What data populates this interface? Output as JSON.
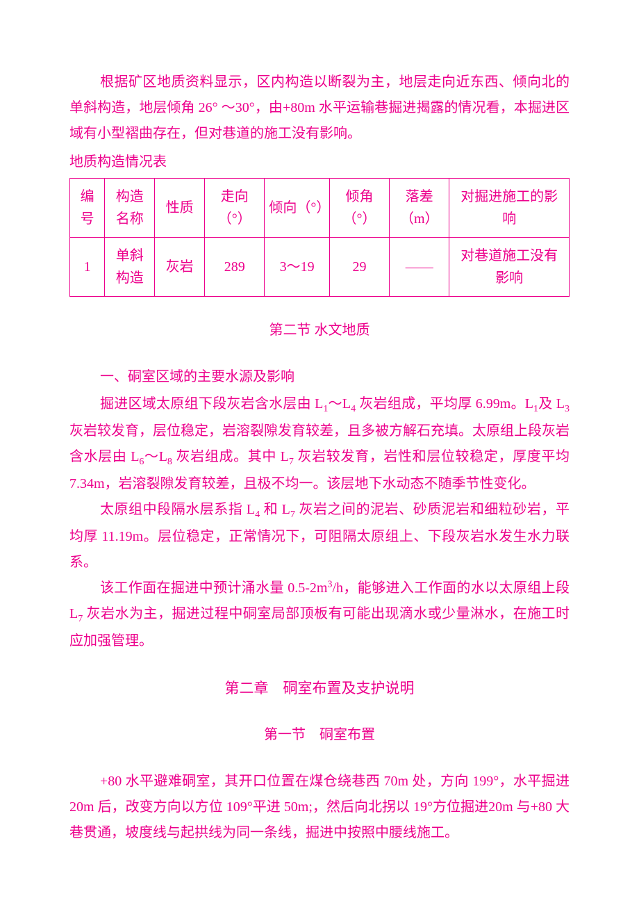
{
  "fontColor": "#ed008c",
  "paragraphs": {
    "p1": "根据矿区地质资料显示，区内构造以断裂为主，地层走向近东西、倾向北的单斜构造，地层倾角 26° ～30°，由+80m 水平运输巷掘进揭露的情况看，本掘进区域有小型褶曲存在，但对巷道的施工没有影响。",
    "tableCaption": "地质构造情况表",
    "sec2Title": "第二节 水文地质",
    "sub1": "一、硐室区域的主要水源及影响",
    "p2a": "掘进区域太原组下段灰岩含水层由 L",
    "p2b": "～L",
    "p2c": " 灰岩组成，平均厚 6.99m。L",
    "p2d": "及 L",
    "p2e": " 灰岩较发育，层位稳定，岩溶裂隙发育较差，且多被方解石充填。太原组上段灰岩含水层由 L",
    "p2f": "～L",
    "p2g": " 灰岩组成。其中 L",
    "p2h": " 灰岩较发育，岩性和层位较稳定，厚度平均 7.34m，岩溶裂隙发育较差，且极不均一。该层地下水动态不随季节性变化。",
    "p3a": "太原组中段隔水层系指 L",
    "p3b": " 和 L",
    "p3c": " 灰岩之间的泥岩、砂质泥岩和细粒砂岩，平均厚 11.19m。层位稳定，正常情况下，可阻隔太原组上、下段灰岩水发生水力联系。",
    "p4a": "该工作面在掘进中预计涌水量 0.5-2m",
    "p4b": "/h，能够进入工作面的水以太原组上段 L",
    "p4c": " 灰岩水为主，掘进过程中硐室局部顶板有可能出现滴水或少量淋水，在施工时应加强管理。",
    "ch2Title": "第二章　硐室布置及支护说明",
    "sec1Title": "第一节　硐室布置",
    "p5": "+80 水平避难硐室，其开口位置在煤仓绕巷西 70m 处，方向 199°，水平掘进 20m 后，改变方向以方位 109°平进 50m;，然后向北拐以 19°方位掘进20m 与+80 大巷贯通，坡度线与起拱线为同一条线，掘进中按照中腰线施工。"
  },
  "subs": {
    "s1": "1",
    "s3": "3",
    "s4": "4",
    "s6": "6",
    "s7": "7",
    "s8": "8"
  },
  "sup3": "3",
  "table": {
    "headers": {
      "c1": "编号",
      "c2": "构造名称",
      "c3": "性质",
      "c4": "走向（°）",
      "c5": "倾向（°）",
      "c6": "倾角（°）",
      "c7": "落差（m）",
      "c8": "对掘进施工的影响"
    },
    "row": {
      "c1": "1",
      "c2": "单斜构造",
      "c3": "灰岩",
      "c4": "289",
      "c5": "3～19",
      "c6": "29",
      "c7": "——",
      "c8": "对巷道施工没有影响"
    }
  }
}
